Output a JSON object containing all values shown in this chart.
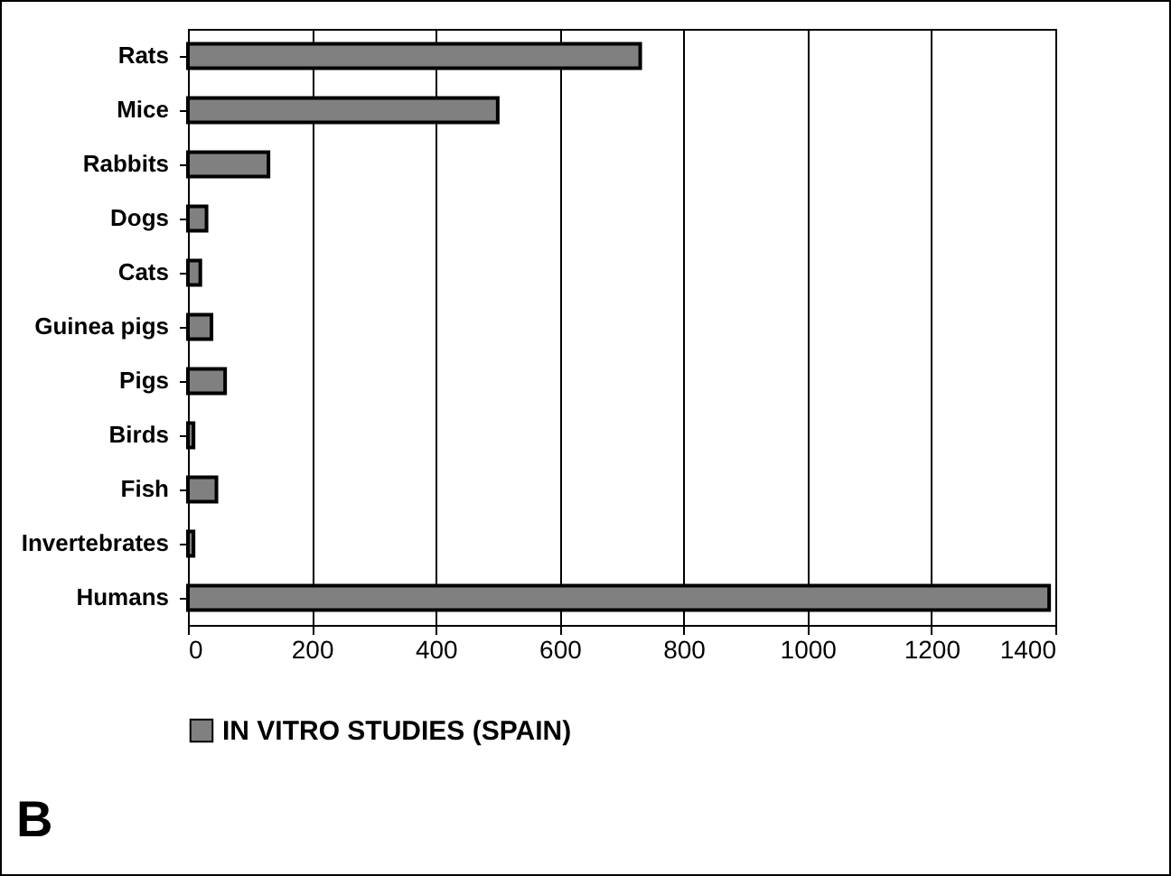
{
  "chart_data": {
    "type": "bar",
    "orientation": "horizontal",
    "categories": [
      "Rats",
      "Mice",
      "Rabbits",
      "Dogs",
      "Cats",
      "Guinea pigs",
      "Pigs",
      "Birds",
      "Fish",
      "Invertebrates",
      "Humans"
    ],
    "series": [
      {
        "name": "IN VITRO STUDIES (SPAIN)",
        "color": "#808080",
        "values": [
          730,
          500,
          130,
          30,
          20,
          38,
          60,
          9,
          46,
          9,
          1390
        ]
      }
    ],
    "xlim": [
      0,
      1400
    ],
    "xticks": [
      0,
      200,
      400,
      600,
      800,
      1000,
      1200,
      1400
    ],
    "grid": "x",
    "legend": "bottom",
    "annotations": [
      "B"
    ]
  }
}
